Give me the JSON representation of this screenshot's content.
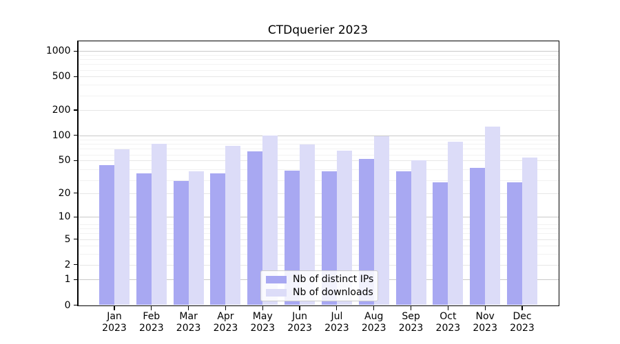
{
  "chart_data": {
    "type": "bar",
    "title": "CTDquerier 2023",
    "categories": [
      "Jan 2023",
      "Feb 2023",
      "Mar 2023",
      "Apr 2023",
      "May 2023",
      "Jun 2023",
      "Jul 2023",
      "Aug 2023",
      "Sep 2023",
      "Oct 2023",
      "Nov 2023",
      "Dec 2023"
    ],
    "series": [
      {
        "name": "Nb of distinct IPs",
        "color": "#a8a8f2",
        "values": [
          44,
          35,
          28,
          35,
          64,
          38,
          37,
          52,
          37,
          27,
          41,
          27
        ]
      },
      {
        "name": "Nb of downloads",
        "color": "#dcdcf8",
        "values": [
          68,
          80,
          37,
          75,
          100,
          78,
          66,
          97,
          50,
          84,
          128,
          54
        ]
      }
    ],
    "xlabel": "",
    "ylabel": "",
    "y_scale": "log1p",
    "y_ticks": [
      0,
      1,
      2,
      5,
      10,
      20,
      50,
      100,
      200,
      500,
      1000
    ],
    "y_range": [
      0,
      1300
    ],
    "grid": "horizontal, major and minor",
    "legend_position": "lower center"
  },
  "colors": {
    "ips_bar": "#a8a8f2",
    "downloads_bar": "#dcdcf8",
    "grid_decade": "#c9c9c9",
    "grid_labeled": "#e6e6e6",
    "grid_minor": "#f2f2f2",
    "axis": "#000000",
    "background": "#ffffff"
  }
}
